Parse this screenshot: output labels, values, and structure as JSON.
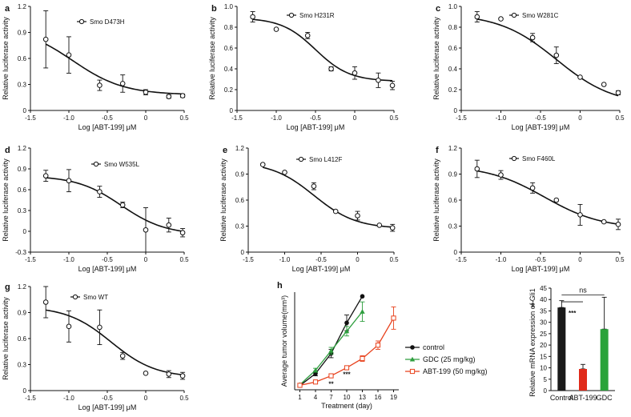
{
  "figure": {
    "colors": {
      "ink": "#111111",
      "control": "#111111",
      "gdc": "#2e9e3e",
      "abt": "#e8411c",
      "bar_control": "#1a1a1a",
      "bar_abt": "#e02a1a",
      "bar_gdc": "#2aa33a"
    }
  },
  "chart_data": [
    {
      "panel": "a",
      "type": "line",
      "fit": "sigmoid",
      "legend": "Smo D473H",
      "xlabel": "Log [ABT-199] μM",
      "ylabel": "Relative luciferase activity",
      "xlim": [
        -1.5,
        0.5
      ],
      "ylim": [
        0,
        1.2
      ],
      "xticks": [
        "-1.5",
        "-1.0",
        "-0.5",
        "0",
        "0.5"
      ],
      "yticks": [
        "0",
        "0.3",
        "0.6",
        "0.9",
        "1.2"
      ],
      "yticks_values": [
        0,
        0.3,
        0.6,
        0.9,
        1.2
      ],
      "x": [
        -1.3,
        -1.0,
        -0.6,
        -0.3,
        0.0,
        0.3,
        0.48
      ],
      "y": [
        0.82,
        0.64,
        0.29,
        0.31,
        0.21,
        0.16,
        0.17
      ],
      "err": [
        0.33,
        0.21,
        0.06,
        0.1,
        0.03,
        0.02,
        0.02
      ],
      "curve": {
        "bottom": 0.18,
        "top": 0.97,
        "logec50": -0.95,
        "hill": 1.3
      }
    },
    {
      "panel": "b",
      "type": "line",
      "fit": "sigmoid",
      "legend": "Smo H231R",
      "xlabel": "Log [ABT-199] μM",
      "ylabel": "Relative luciferase activity",
      "xlim": [
        -1.5,
        0.5
      ],
      "ylim": [
        0,
        1.0
      ],
      "xticks": [
        "-1.5",
        "-1.0",
        "-0.5",
        "0",
        "0.5"
      ],
      "yticks": [
        "0",
        "0.2",
        "0.4",
        "0.6",
        "0.8",
        "1.0"
      ],
      "yticks_values": [
        0,
        0.2,
        0.4,
        0.6,
        0.8,
        1.0
      ],
      "x": [
        -1.3,
        -1.0,
        -0.6,
        -0.3,
        0.0,
        0.3,
        0.48
      ],
      "y": [
        0.9,
        0.78,
        0.72,
        0.4,
        0.36,
        0.29,
        0.24
      ],
      "err": [
        0.05,
        0.0,
        0.03,
        0.02,
        0.06,
        0.07,
        0.04
      ],
      "curve": {
        "bottom": 0.28,
        "top": 0.89,
        "logec50": -0.5,
        "hill": 2.0
      }
    },
    {
      "panel": "c",
      "type": "line",
      "fit": "sigmoid",
      "legend": "Smo W281C",
      "xlabel": "Log [ABT-199] μM",
      "ylabel": "Relative luciferase activity",
      "xlim": [
        -1.5,
        0.5
      ],
      "ylim": [
        0,
        1.0
      ],
      "xticks": [
        "-1.5",
        "-1.0",
        "-0.5",
        "0",
        "0.5"
      ],
      "yticks": [
        "0",
        "0.2",
        "0.4",
        "0.6",
        "0.8",
        "1.0"
      ],
      "yticks_values": [
        0,
        0.2,
        0.4,
        0.6,
        0.8,
        1.0
      ],
      "x": [
        -1.3,
        -1.0,
        -0.6,
        -0.3,
        0.0,
        0.3,
        0.48
      ],
      "y": [
        0.9,
        0.88,
        0.7,
        0.53,
        0.32,
        0.25,
        0.17
      ],
      "err": [
        0.05,
        0.0,
        0.04,
        0.08,
        0.0,
        0.0,
        0.02
      ],
      "curve": {
        "bottom": 0.05,
        "top": 0.93,
        "logec50": -0.3,
        "hill": 1.2
      }
    },
    {
      "panel": "d",
      "type": "line",
      "fit": "sigmoid",
      "legend": "Smo W535L",
      "xlabel": "Log [ABT-199] μM",
      "ylabel": "Relative luciferase activity",
      "xlim": [
        -1.5,
        0.5
      ],
      "ylim": [
        -0.3,
        1.2
      ],
      "xticks": [
        "-1.5",
        "-1.0",
        "-0.5",
        "0",
        "0.5"
      ],
      "yticks": [
        "-0.3",
        "0",
        "0.3",
        "0.6",
        "0.9",
        "1.2"
      ],
      "yticks_values": [
        -0.3,
        0,
        0.3,
        0.6,
        0.9,
        1.2
      ],
      "x": [
        -1.3,
        -1.0,
        -0.6,
        -0.3,
        0.0,
        0.3,
        0.48
      ],
      "y": [
        0.8,
        0.73,
        0.57,
        0.38,
        0.02,
        0.09,
        -0.02
      ],
      "err": [
        0.08,
        0.16,
        0.08,
        0.04,
        0.32,
        0.1,
        0.06
      ],
      "curve": {
        "bottom": -0.05,
        "top": 0.8,
        "logec50": -0.32,
        "hill": 1.5
      }
    },
    {
      "panel": "e",
      "type": "line",
      "fit": "sigmoid",
      "legend": "Smo L412F",
      "xlabel": "Log [ABT-199] μM",
      "ylabel": "Relative luciferase activity",
      "xlim": [
        -1.5,
        0.5
      ],
      "ylim": [
        0,
        1.2
      ],
      "xticks": [
        "-1.5",
        "-1.0",
        "-0.5",
        "0",
        "0.5"
      ],
      "yticks": [
        "0",
        "0.3",
        "0.6",
        "0.9",
        "1.2"
      ],
      "yticks_values": [
        0,
        0.3,
        0.6,
        0.9,
        1.2
      ],
      "x": [
        -1.3,
        -1.0,
        -0.6,
        -0.3,
        0.0,
        0.3,
        0.48
      ],
      "y": [
        1.01,
        0.92,
        0.76,
        0.47,
        0.42,
        0.31,
        0.28
      ],
      "err": [
        0.0,
        0.0,
        0.04,
        0.0,
        0.05,
        0.0,
        0.04
      ],
      "curve": {
        "bottom": 0.27,
        "top": 1.04,
        "logec50": -0.6,
        "hill": 1.5
      }
    },
    {
      "panel": "f",
      "type": "line",
      "fit": "sigmoid",
      "legend": "Smo F460L",
      "xlabel": "Log [ABT-199] μM",
      "ylabel": "Relative luciferase activity",
      "xlim": [
        -1.5,
        0.5
      ],
      "ylim": [
        0,
        1.2
      ],
      "xticks": [
        "-1.5",
        "-1.0",
        "-0.5",
        "0",
        "0.5"
      ],
      "yticks": [
        "0",
        "0.3",
        "0.6",
        "0.9",
        "1.2"
      ],
      "yticks_values": [
        0,
        0.3,
        0.6,
        0.9,
        1.2
      ],
      "x": [
        -1.3,
        -1.0,
        -0.6,
        -0.3,
        0.0,
        0.3,
        0.48
      ],
      "y": [
        0.96,
        0.89,
        0.74,
        0.6,
        0.43,
        0.35,
        0.32
      ],
      "err": [
        0.1,
        0.05,
        0.06,
        0.0,
        0.12,
        0.0,
        0.06
      ],
      "curve": {
        "bottom": 0.27,
        "top": 1.0,
        "logec50": -0.45,
        "hill": 1.2
      }
    },
    {
      "panel": "g",
      "type": "line",
      "fit": "sigmoid",
      "legend": "Smo WT",
      "xlabel": "Log [ABT-199] μM",
      "ylabel": "Relative luciferase activity",
      "xlim": [
        -1.5,
        0.5
      ],
      "ylim": [
        0,
        1.2
      ],
      "xticks": [
        "-1.5",
        "-1.0",
        "-0.5",
        "0",
        "0.5"
      ],
      "yticks": [
        "0",
        "0.3",
        "0.6",
        "0.9",
        "1.2"
      ],
      "yticks_values": [
        0,
        0.3,
        0.6,
        0.9,
        1.2
      ],
      "x": [
        -1.3,
        -1.0,
        -0.6,
        -0.3,
        0.0,
        0.3,
        0.48
      ],
      "y": [
        1.02,
        0.74,
        0.73,
        0.4,
        0.2,
        0.19,
        0.17
      ],
      "err": [
        0.18,
        0.18,
        0.2,
        0.04,
        0.0,
        0.04,
        0.04
      ],
      "curve": {
        "bottom": 0.15,
        "top": 0.97,
        "logec50": -0.45,
        "hill": 1.5
      }
    },
    {
      "panel": "h",
      "type": "line",
      "xlabel": "Treatment (day)",
      "ylabel": "Average tumor volume(mm³)",
      "xlim": [
        0,
        20
      ],
      "ylim": [
        0,
        3500
      ],
      "xticks": [
        "1",
        "4",
        "7",
        "10",
        "13",
        "16",
        "19"
      ],
      "xticks_values": [
        1,
        4,
        7,
        10,
        13,
        16,
        19
      ],
      "series": [
        {
          "name": "control",
          "x": [
            1,
            4,
            7,
            10,
            13
          ],
          "y": [
            150,
            580,
            1300,
            2400,
            3350
          ],
          "err": [
            40,
            80,
            150,
            280,
            0
          ],
          "marker": "circle",
          "color": "#111111"
        },
        {
          "name": "GDC (25 mg/kg)",
          "x": [
            1,
            4,
            7,
            10,
            13
          ],
          "y": [
            180,
            700,
            1400,
            2100,
            2800
          ],
          "err": [
            40,
            70,
            120,
            170,
            350
          ],
          "marker": "triangle",
          "color": "#2e9e3e"
        },
        {
          "name": "ABT-199 (50 mg/kg)",
          "x": [
            1,
            4,
            7,
            10,
            13,
            16,
            19
          ],
          "y": [
            160,
            280,
            500,
            790,
            1120,
            1600,
            2570
          ],
          "err": [
            30,
            40,
            50,
            70,
            100,
            150,
            400
          ],
          "marker": "square",
          "color": "#e8411c"
        }
      ],
      "annotations": [
        {
          "text": "**",
          "x": 7,
          "y": 130
        },
        {
          "text": "***",
          "x": 10,
          "y": 480
        }
      ]
    },
    {
      "panel": "i",
      "type": "bar",
      "ylabel": "Relative mRNA expression of Gli1",
      "categories": [
        "Control",
        "ABT-199",
        "GDC"
      ],
      "values": [
        36.5,
        9.5,
        27.0
      ],
      "err": [
        3.0,
        2.0,
        14.0
      ],
      "colors": [
        "#1a1a1a",
        "#e02a1a",
        "#2aa33a"
      ],
      "ylim": [
        0,
        45
      ],
      "yticks": [
        "0",
        "5",
        "10",
        "15",
        "20",
        "25",
        "30",
        "35",
        "40",
        "45"
      ],
      "yticks_values": [
        0,
        5,
        10,
        15,
        20,
        25,
        30,
        35,
        40,
        45
      ],
      "annotations": [
        "ns",
        "***"
      ]
    }
  ]
}
